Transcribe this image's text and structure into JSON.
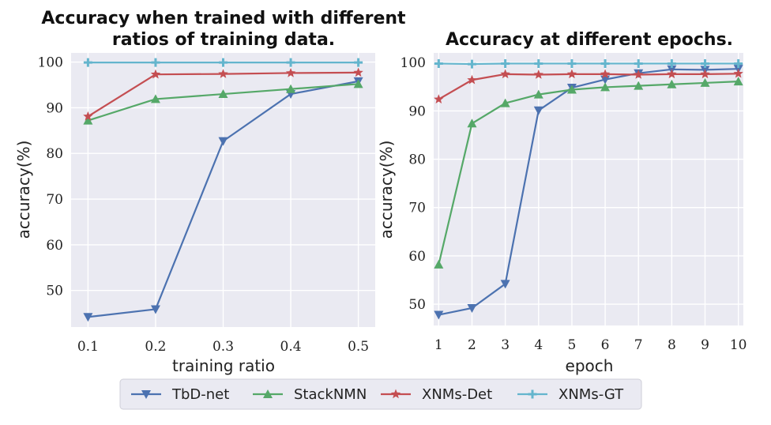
{
  "legend": {
    "entries": [
      {
        "name": "TbD-net",
        "color": "#4c72b0",
        "marker": "triangle-down"
      },
      {
        "name": "StackNMN",
        "color": "#55a868",
        "marker": "triangle-up"
      },
      {
        "name": "XNMs-Det",
        "color": "#c44e52",
        "marker": "star"
      },
      {
        "name": "XNMs-GT",
        "color": "#64b5cd",
        "marker": "plus"
      }
    ]
  },
  "chart_data": [
    {
      "type": "line",
      "title_lines": [
        "Accuracy when trained with different",
        "ratios of training data."
      ],
      "xlabel": "training ratio",
      "ylabel": "accuracy(%)",
      "x": [
        0.1,
        0.2,
        0.3,
        0.4,
        0.5
      ],
      "xticks": [
        "0.1",
        "0.2",
        "0.3",
        "0.4",
        "0.5"
      ],
      "xlim": [
        0.075,
        0.525
      ],
      "ylim": [
        42,
        102
      ],
      "yticks": [
        50,
        60,
        70,
        80,
        90,
        100
      ],
      "series": [
        {
          "name": "TbD-net",
          "values": [
            44.2,
            45.9,
            82.7,
            93.0,
            95.8
          ]
        },
        {
          "name": "StackNMN",
          "values": [
            87.2,
            91.9,
            93.0,
            94.1,
            95.2
          ]
        },
        {
          "name": "XNMs-Det",
          "values": [
            88.1,
            97.3,
            97.4,
            97.6,
            97.7
          ]
        },
        {
          "name": "XNMs-GT",
          "values": [
            99.9,
            99.9,
            99.9,
            99.9,
            99.9
          ]
        }
      ]
    },
    {
      "type": "line",
      "title_lines": [
        "Accuracy at different epochs."
      ],
      "xlabel": "epoch",
      "ylabel": "accuracy(%)",
      "x": [
        1,
        2,
        3,
        4,
        5,
        6,
        7,
        8,
        9,
        10
      ],
      "xticks": [
        "1",
        "2",
        "3",
        "4",
        "5",
        "6",
        "7",
        "8",
        "9",
        "10"
      ],
      "xlim": [
        0.85,
        10.15
      ],
      "ylim": [
        45.6,
        102
      ],
      "yticks": [
        50,
        60,
        70,
        80,
        90,
        100
      ],
      "series": [
        {
          "name": "TbD-net",
          "values": [
            47.8,
            49.2,
            54.2,
            90.1,
            94.8,
            96.5,
            97.8,
            98.6,
            98.5,
            98.7
          ]
        },
        {
          "name": "StackNMN",
          "values": [
            58.2,
            87.4,
            91.6,
            93.4,
            94.4,
            94.9,
            95.2,
            95.5,
            95.8,
            96.1
          ]
        },
        {
          "name": "XNMs-Det",
          "values": [
            92.4,
            96.4,
            97.6,
            97.5,
            97.6,
            97.6,
            97.5,
            97.6,
            97.6,
            97.7
          ]
        },
        {
          "name": "XNMs-GT",
          "values": [
            99.8,
            99.7,
            99.8,
            99.8,
            99.8,
            99.8,
            99.8,
            99.8,
            99.8,
            99.8
          ]
        }
      ]
    }
  ]
}
